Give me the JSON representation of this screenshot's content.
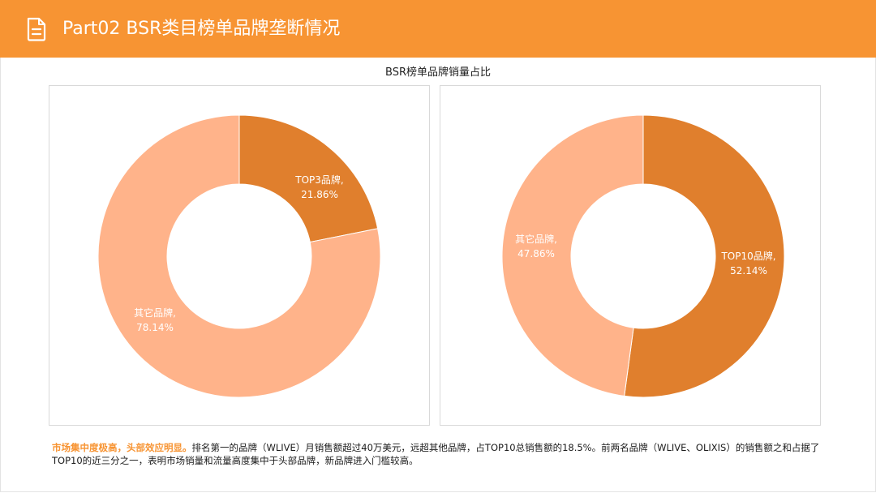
{
  "header": {
    "title": "Part02 BSR类目榜单品牌垄断情况",
    "icon": "document-icon"
  },
  "colors": {
    "accent": "#F79433",
    "dark_slice": "#E07F2D",
    "light_slice": "#FFB38A"
  },
  "chart_data": {
    "title": "BSR榜单品牌销量占比",
    "charts": [
      {
        "type": "pie",
        "style": "donut",
        "slices": [
          {
            "name": "TOP3品牌",
            "value": 21.86,
            "label_value": "21.86%",
            "color": "#E07F2D"
          },
          {
            "name": "其它品牌",
            "value": 78.14,
            "label_value": "78.14%",
            "color": "#FFB38A"
          }
        ]
      },
      {
        "type": "pie",
        "style": "donut",
        "slices": [
          {
            "name": "TOP10品牌",
            "value": 52.14,
            "label_value": "52.14%",
            "color": "#E07F2D"
          },
          {
            "name": "其它品牌",
            "value": 47.86,
            "label_value": "47.86%",
            "color": "#FFB38A"
          }
        ]
      }
    ]
  },
  "summary": {
    "highlight": "市场集中度极高，头部效应明显。",
    "text": "排名第一的品牌（WLIVE）月销售额超过40万美元，远超其他品牌，占TOP10总销售额的18.5%。前两名品牌（WLIVE、OLIXIS）的销售额之和占据了TOP10的近三分之一，表明市场销量和流量高度集中于头部品牌，新品牌进入门槛较高。"
  }
}
